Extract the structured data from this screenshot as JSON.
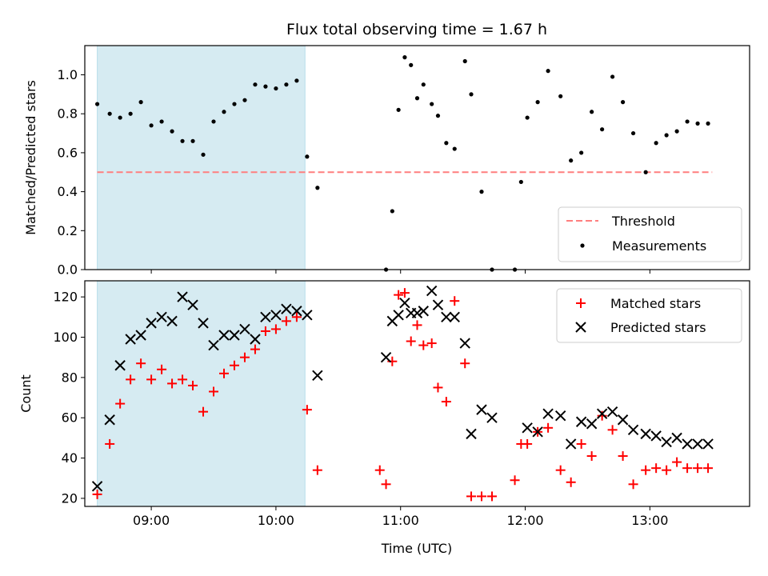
{
  "figure": {
    "title": "Flux total observing time = 1.67 h"
  },
  "chart_data": [
    {
      "type": "scatter",
      "title": "Flux total observing time = 1.67 h",
      "xlabel": "",
      "ylabel": "Matched/Predicted stars",
      "xlim": [
        "08:28",
        "13:48"
      ],
      "ylim": [
        0,
        1.15
      ],
      "yticks": [
        0.0,
        0.2,
        0.4,
        0.6,
        0.8,
        1.0
      ],
      "ytick_labels": [
        "0.0",
        "0.2",
        "0.4",
        "0.6",
        "0.8",
        "1.0"
      ],
      "xticks": [
        "09:00",
        "10:00",
        "11:00",
        "12:00",
        "13:00"
      ],
      "xtick_labels": [
        "",
        "",
        "",
        "",
        ""
      ],
      "grid": false,
      "legend_position": "lower-right",
      "shaded_interval": {
        "x_start": "08:34",
        "x_end": "10:14",
        "color": "#add8e6"
      },
      "threshold": {
        "name": "Threshold",
        "y": 0.5,
        "x_start": "08:34",
        "x_end": "13:30",
        "color": "#ff7f7f",
        "style": "dashed"
      },
      "series": [
        {
          "name": "Measurements",
          "color": "#000000",
          "marker": "dot",
          "x": [
            "08:34",
            "08:40",
            "08:45",
            "08:50",
            "08:55",
            "09:00",
            "09:05",
            "09:10",
            "09:15",
            "09:20",
            "09:25",
            "09:30",
            "09:35",
            "09:40",
            "09:45",
            "09:50",
            "09:55",
            "10:00",
            "10:05",
            "10:10",
            "10:15",
            "10:20",
            "10:53",
            "10:56",
            "10:59",
            "11:02",
            "11:05",
            "11:08",
            "11:11",
            "11:15",
            "11:18",
            "11:22",
            "11:26",
            "11:31",
            "11:34",
            "11:39",
            "11:44",
            "11:55",
            "11:58",
            "12:01",
            "12:06",
            "12:11",
            "12:17",
            "12:22",
            "12:27",
            "12:32",
            "12:37",
            "12:42",
            "12:47",
            "12:52",
            "12:58",
            "13:03",
            "13:08",
            "13:13",
            "13:18",
            "13:23",
            "13:28"
          ],
          "y": [
            0.85,
            0.8,
            0.78,
            0.8,
            0.86,
            0.74,
            0.76,
            0.71,
            0.66,
            0.66,
            0.59,
            0.76,
            0.81,
            0.85,
            0.87,
            0.95,
            0.94,
            0.93,
            0.95,
            0.97,
            0.58,
            0.42,
            0.0,
            0.3,
            0.82,
            1.09,
            1.05,
            0.88,
            0.95,
            0.85,
            0.79,
            0.65,
            0.62,
            1.07,
            0.9,
            0.4,
            0.0,
            0.0,
            0.45,
            0.78,
            0.86,
            1.02,
            0.89,
            0.56,
            0.6,
            0.81,
            0.72,
            0.99,
            0.86,
            0.7,
            0.5,
            0.65,
            0.69,
            0.71,
            0.76,
            0.75,
            0.75
          ]
        }
      ]
    },
    {
      "type": "scatter",
      "title": "",
      "xlabel": "Time (UTC)",
      "ylabel": "Count",
      "xlim": [
        "08:28",
        "13:48"
      ],
      "ylim": [
        16,
        128
      ],
      "yticks": [
        20,
        40,
        60,
        80,
        100,
        120
      ],
      "ytick_labels": [
        "20",
        "40",
        "60",
        "80",
        "100",
        "120"
      ],
      "xticks": [
        "09:00",
        "10:00",
        "11:00",
        "12:00",
        "13:00"
      ],
      "xtick_labels": [
        "09:00",
        "10:00",
        "11:00",
        "12:00",
        "13:00"
      ],
      "grid": false,
      "legend_position": "upper-right",
      "shaded_interval": {
        "x_start": "08:34",
        "x_end": "10:14",
        "color": "#add8e6"
      },
      "series": [
        {
          "name": "Matched stars",
          "color": "#ff0000",
          "marker": "plus",
          "x": [
            "08:34",
            "08:40",
            "08:45",
            "08:50",
            "08:55",
            "09:00",
            "09:05",
            "09:10",
            "09:15",
            "09:20",
            "09:25",
            "09:30",
            "09:35",
            "09:40",
            "09:45",
            "09:50",
            "09:55",
            "10:00",
            "10:05",
            "10:10",
            "10:15",
            "10:20",
            "10:50",
            "10:53",
            "10:56",
            "10:59",
            "11:02",
            "11:05",
            "11:08",
            "11:11",
            "11:15",
            "11:18",
            "11:22",
            "11:26",
            "11:31",
            "11:34",
            "11:39",
            "11:44",
            "11:55",
            "11:58",
            "12:01",
            "12:06",
            "12:11",
            "12:17",
            "12:22",
            "12:27",
            "12:32",
            "12:37",
            "12:42",
            "12:47",
            "12:52",
            "12:58",
            "13:03",
            "13:08",
            "13:13",
            "13:18",
            "13:23",
            "13:28"
          ],
          "y": [
            22,
            47,
            67,
            79,
            87,
            79,
            84,
            77,
            79,
            76,
            63,
            73,
            82,
            86,
            90,
            94,
            103,
            104,
            108,
            110,
            64,
            34,
            34,
            27,
            88,
            121,
            122,
            98,
            106,
            96,
            97,
            75,
            68,
            118,
            87,
            21,
            21,
            21,
            29,
            47,
            47,
            53,
            55,
            34,
            28,
            47,
            41,
            61,
            54,
            41,
            27,
            34,
            35,
            34,
            38,
            35,
            35,
            35
          ]
        },
        {
          "name": "Predicted stars",
          "color": "#000000",
          "marker": "x",
          "x": [
            "08:34",
            "08:40",
            "08:45",
            "08:50",
            "08:55",
            "09:00",
            "09:05",
            "09:10",
            "09:15",
            "09:20",
            "09:25",
            "09:30",
            "09:35",
            "09:40",
            "09:45",
            "09:50",
            "09:55",
            "10:00",
            "10:05",
            "10:10",
            "10:15",
            "10:20",
            "10:53",
            "10:56",
            "10:59",
            "11:02",
            "11:05",
            "11:08",
            "11:11",
            "11:15",
            "11:18",
            "11:22",
            "11:26",
            "11:31",
            "11:34",
            "11:39",
            "11:44",
            "12:01",
            "12:06",
            "12:11",
            "12:17",
            "12:22",
            "12:27",
            "12:32",
            "12:37",
            "12:42",
            "12:47",
            "12:52",
            "12:58",
            "13:03",
            "13:08",
            "13:13",
            "13:18",
            "13:23",
            "13:28"
          ],
          "y": [
            26,
            59,
            86,
            99,
            101,
            107,
            110,
            108,
            120,
            116,
            107,
            96,
            101,
            101,
            104,
            99,
            110,
            111,
            114,
            113,
            111,
            81,
            90,
            108,
            111,
            117,
            112,
            112,
            113,
            123,
            116,
            110,
            110,
            97,
            52,
            64,
            60,
            55,
            53,
            62,
            61,
            47,
            58,
            57,
            62,
            63,
            59,
            54,
            52,
            51,
            48,
            50,
            47,
            47,
            47
          ]
        }
      ]
    }
  ]
}
